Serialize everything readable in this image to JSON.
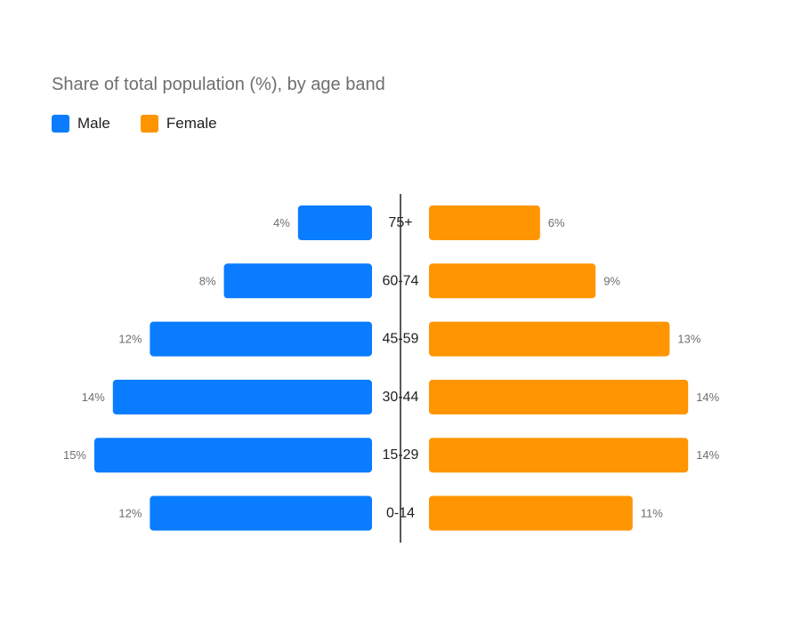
{
  "chart_data": {
    "type": "bar",
    "orientation": "horizontal",
    "layout": "population-pyramid",
    "title": "Share of total population (%), by age band",
    "categories": [
      "75+",
      "60-74",
      "45-59",
      "30-44",
      "15-29",
      "0-14"
    ],
    "series": [
      {
        "name": "Male",
        "color": "#0a7cff",
        "side": "left",
        "values": [
          4,
          8,
          12,
          14,
          15,
          12
        ],
        "labels": [
          "4%",
          "8%",
          "12%",
          "14%",
          "15%",
          "12%"
        ]
      },
      {
        "name": "Female",
        "color": "#ff9500",
        "side": "right",
        "values": [
          6,
          9,
          13,
          14,
          14,
          11
        ],
        "labels": [
          "6%",
          "9%",
          "13%",
          "14%",
          "14%",
          "11%"
        ]
      }
    ],
    "legend": "top-left",
    "grid": false
  }
}
